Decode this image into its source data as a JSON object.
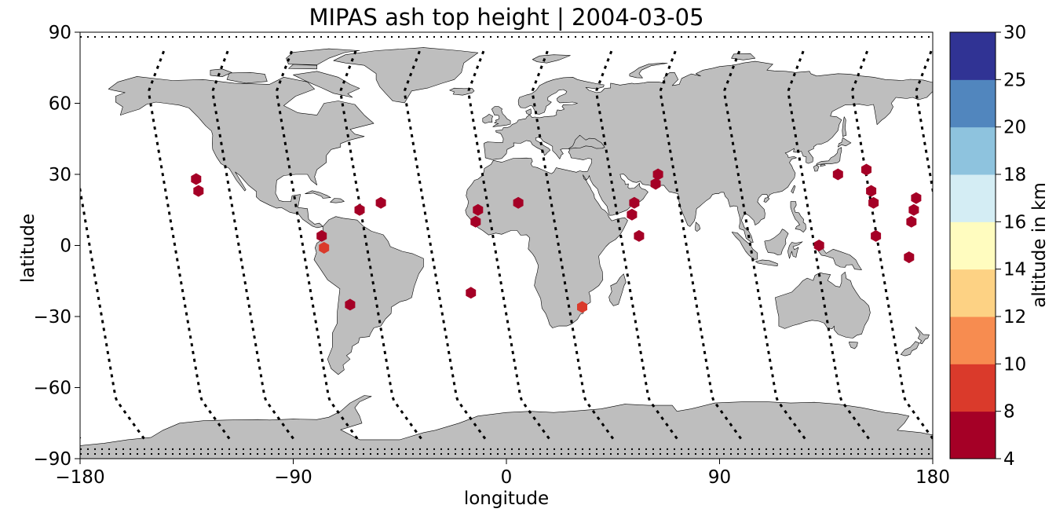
{
  "chart_data": {
    "type": "scatter",
    "title": "MIPAS ash top height | 2004-03-05",
    "xlabel": "longitude",
    "ylabel": "latitude",
    "xlim": [
      -180,
      180
    ],
    "ylim": [
      -90,
      90
    ],
    "xticks": [
      -180,
      -90,
      0,
      90,
      180
    ],
    "yticks": [
      -90,
      -60,
      -30,
      0,
      30,
      60,
      90
    ],
    "xtick_labels": [
      "−180",
      "−90",
      "0",
      "90",
      "180"
    ],
    "ytick_labels": [
      "−90",
      "−60",
      "−30",
      "0",
      "30",
      "60",
      "90"
    ],
    "grid": false,
    "land_color": "#bebebe",
    "ocean_color": "#ffffff",
    "colorbar": {
      "label": "altitude in km",
      "bounds": [
        4,
        8,
        10,
        12,
        14,
        16,
        18,
        20,
        25,
        30
      ],
      "tick_labels": [
        "4",
        "8",
        "10",
        "12",
        "14",
        "16",
        "18",
        "20",
        "25",
        "30"
      ],
      "colors": [
        "#a50026",
        "#d73027",
        "#f46d43",
        "#fdae61",
        "#fee090",
        "#ffffbf",
        "#e0f3f8",
        "#abd9e9",
        "#74add1",
        "#4575b4"
      ],
      "display_colors": [
        "#a50026",
        "#da3a2b",
        "#f78c50",
        "#fdd284",
        "#fffcbf",
        "#d4edf4",
        "#8ec3de",
        "#5186be",
        "#303394"
      ]
    },
    "ash_points": [
      {
        "lon": -131,
        "lat": 28,
        "alt": 6
      },
      {
        "lon": -130,
        "lat": 23,
        "alt": 6
      },
      {
        "lon": -78,
        "lat": 4,
        "alt": 6
      },
      {
        "lon": -77,
        "lat": -1,
        "alt": 9
      },
      {
        "lon": -62,
        "lat": 15,
        "alt": 6
      },
      {
        "lon": -53,
        "lat": 18,
        "alt": 6
      },
      {
        "lon": -66,
        "lat": -25,
        "alt": 6
      },
      {
        "lon": -15,
        "lat": -20,
        "alt": 6
      },
      {
        "lon": -12,
        "lat": 15,
        "alt": 6
      },
      {
        "lon": -13,
        "lat": 10,
        "alt": 6
      },
      {
        "lon": 5,
        "lat": 18,
        "alt": 6
      },
      {
        "lon": 32,
        "lat": -26,
        "alt": 9
      },
      {
        "lon": 54,
        "lat": 18,
        "alt": 6
      },
      {
        "lon": 53,
        "lat": 13,
        "alt": 6
      },
      {
        "lon": 56,
        "lat": 4,
        "alt": 6
      },
      {
        "lon": 64,
        "lat": 30,
        "alt": 6
      },
      {
        "lon": 63,
        "lat": 26,
        "alt": 6
      },
      {
        "lon": 132,
        "lat": 0,
        "alt": 6
      },
      {
        "lon": 140,
        "lat": 30,
        "alt": 6
      },
      {
        "lon": 152,
        "lat": 32,
        "alt": 6
      },
      {
        "lon": 154,
        "lat": 23,
        "alt": 6
      },
      {
        "lon": 155,
        "lat": 18,
        "alt": 6
      },
      {
        "lon": 156,
        "lat": 4,
        "alt": 6
      },
      {
        "lon": 170,
        "lat": -5,
        "alt": 6
      },
      {
        "lon": 171,
        "lat": 10,
        "alt": 6
      },
      {
        "lon": 172,
        "lat": 15,
        "alt": 6
      },
      {
        "lon": 173,
        "lat": 20,
        "alt": 6
      }
    ],
    "orbit_tracks": [
      {
        "lon_top": -154,
        "lon_bottom": -126
      },
      {
        "lon_top": -127,
        "lon_bottom": -99
      },
      {
        "lon_top": -100,
        "lon_bottom": -72
      },
      {
        "lon_top": -73,
        "lon_bottom": -45
      },
      {
        "lon_top": -46,
        "lon_bottom": -18
      },
      {
        "lon_top": -19,
        "lon_bottom": 9
      },
      {
        "lon_top": 8,
        "lon_bottom": 36
      },
      {
        "lon_top": 35,
        "lon_bottom": 63
      },
      {
        "lon_top": 62,
        "lon_bottom": 90
      },
      {
        "lon_top": 89,
        "lon_bottom": 117
      },
      {
        "lon_top": 116,
        "lon_bottom": 144
      },
      {
        "lon_top": 143,
        "lon_bottom": 171
      },
      {
        "lon_top": 170,
        "lon_bottom": 198
      }
    ]
  }
}
